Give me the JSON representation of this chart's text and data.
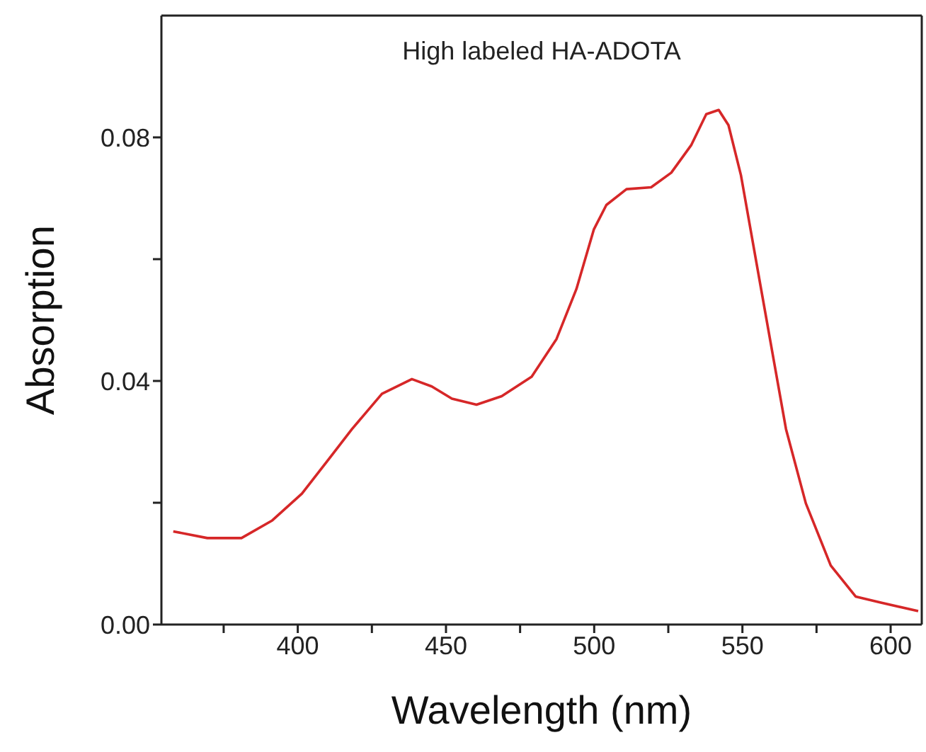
{
  "chart_data": {
    "type": "line",
    "title": "High labeled HA-ADOTA",
    "xlabel": "Wavelength (nm)",
    "ylabel": "Absorption",
    "x": [
      358,
      369.5,
      381,
      391.4,
      401.4,
      410.7,
      418.3,
      428.4,
      438.5,
      445.2,
      452,
      460.3,
      468.8,
      478.9,
      487.3,
      494,
      499.9,
      504.1,
      510.9,
      519.2,
      526,
      532.7,
      537.8,
      542,
      545.3,
      549.5,
      556.3,
      564.7,
      571.4,
      579.8,
      588.2,
      596.7,
      609.3
    ],
    "series": [
      {
        "color": "#d62728",
        "values": [
          0.0153,
          0.0142,
          0.0142,
          0.0171,
          0.0215,
          0.0273,
          0.0321,
          0.0379,
          0.0403,
          0.0391,
          0.0371,
          0.0361,
          0.0375,
          0.0407,
          0.0469,
          0.0551,
          0.0649,
          0.0689,
          0.0715,
          0.0718,
          0.0742,
          0.0787,
          0.0838,
          0.0845,
          0.082,
          0.0738,
          0.0551,
          0.0321,
          0.0199,
          0.0097,
          0.0046,
          0.0036,
          0.0022
        ]
      }
    ],
    "xlim": [
      354,
      610.5
    ],
    "ylim": [
      0,
      0.1
    ],
    "xticks": [
      {
        "value": 375,
        "label": null
      },
      400,
      {
        "value": 425,
        "label": null
      },
      450,
      {
        "value": 475,
        "label": null
      },
      500,
      {
        "value": 525,
        "label": null
      },
      550,
      {
        "value": 575,
        "label": null
      },
      600
    ],
    "yticks": [
      {
        "value": 0,
        "label": "0.00"
      },
      {
        "value": 0.02,
        "label": null
      },
      {
        "value": 0.04,
        "label": "0.04"
      },
      {
        "value": 0.06,
        "label": null
      },
      {
        "value": 0.08,
        "label": "0.08"
      }
    ],
    "marker": "none",
    "line_style": "solid"
  }
}
